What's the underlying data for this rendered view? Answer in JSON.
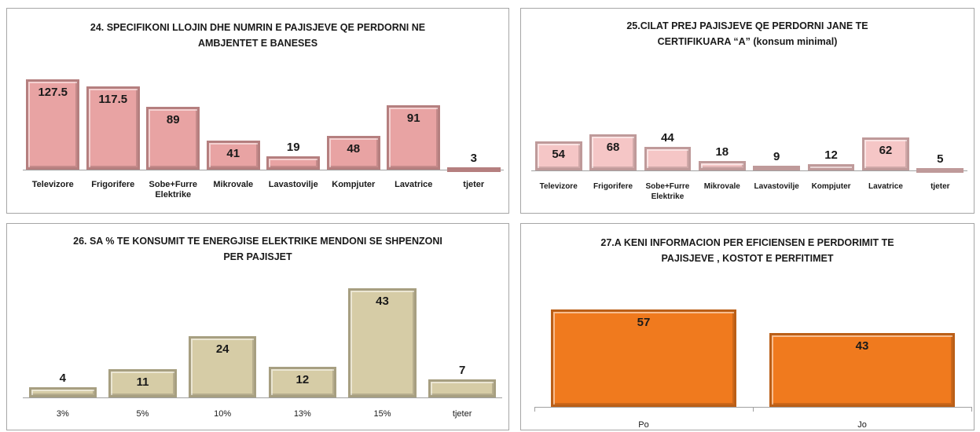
{
  "chart_data": [
    {
      "type": "bar",
      "title": "24. SPECIFIKONI LLOJIN DHE NUMRIN E PAJISJEVE QE PERDORNI NE AMBJENTET E BANESES",
      "categories": [
        "Televizore",
        "Frigorifere",
        "Sobe+Furre Elektrike",
        "Mikrovale",
        "Lavastovilje",
        "Kompjuter",
        "Lavatrice",
        "tjeter"
      ],
      "values": [
        127.5,
        117.5,
        89,
        41,
        19,
        48,
        91,
        3
      ],
      "color": "#e8a3a3"
    },
    {
      "type": "bar",
      "title": "25.CILAT PREJ PAJISJEVE QE PERDORNI JANE TE CERTIFIKUARA “A” (konsum minimal)",
      "categories": [
        "Televizore",
        "Frigorifere",
        "Sobe+Furre Elektrike",
        "Mikrovale",
        "Lavastovilje",
        "Kompjuter",
        "Lavatrice",
        "tjeter"
      ],
      "values": [
        54,
        68,
        44,
        18,
        9,
        12,
        62,
        5
      ],
      "color": "#f5c6c6"
    },
    {
      "type": "bar",
      "title": "26. SA % TE KONSUMIT TE ENERGJISE ELEKTRIKE MENDONI SE SHPENZONI PER PAJISJET",
      "categories": [
        "3%",
        "5%",
        "10%",
        "13%",
        "15%",
        "tjeter"
      ],
      "values": [
        4,
        11,
        24,
        12,
        43,
        7
      ],
      "color": "#d6cca6"
    },
    {
      "type": "bar",
      "title": "27.A KENI INFORMACION PER EFICIENSEN E PERDORIMIT TE PAJISJEVE , KOSTOT E PERFITIMET",
      "categories": [
        "Po",
        "Jo"
      ],
      "values": [
        57,
        43
      ],
      "color": "#f07a1e"
    }
  ]
}
